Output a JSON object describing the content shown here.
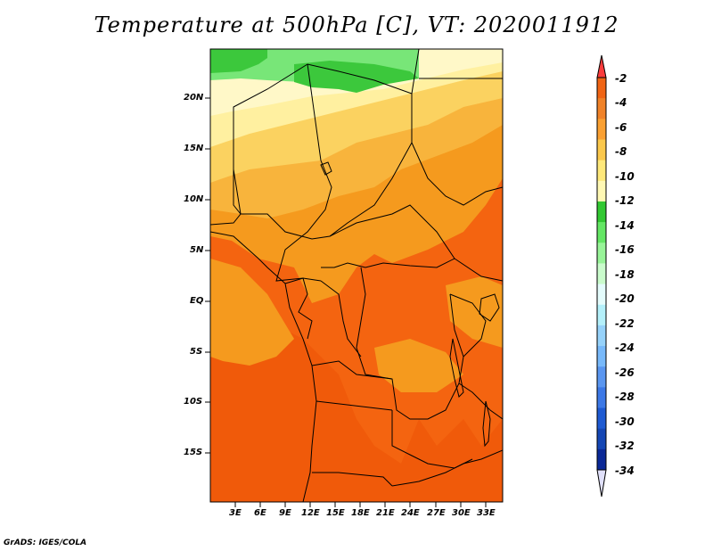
{
  "map": {
    "title": "Temperature at 500hPa [C], VT: 2020011912",
    "variable": "Temperature at 500hPa",
    "units": "C",
    "valid_time": "2020011912",
    "lat_labels": [
      "20N",
      "15N",
      "10N",
      "5N",
      "EQ",
      "5S",
      "10S",
      "15S"
    ],
    "lon_labels": [
      "3E",
      "6E",
      "9E",
      "12E",
      "15E",
      "18E",
      "21E",
      "24E",
      "27E",
      "30E",
      "33E"
    ],
    "credit": "GrADS: IGES/COLA"
  },
  "colorbar": {
    "labels": [
      "-2",
      "-4",
      "-6",
      "-8",
      "-10",
      "-12",
      "-14",
      "-16",
      "-18",
      "-20",
      "-22",
      "-24",
      "-26",
      "-28",
      "-30",
      "-32",
      "-34"
    ],
    "colors": [
      "#fa3c3c",
      "#f06414",
      "#f08228",
      "#faa032",
      "#fbc84c",
      "#fee87a",
      "#fff8b4",
      "#32c832",
      "#64e664",
      "#98f498",
      "#cafccc",
      "#e4fcfc",
      "#b4f0fa",
      "#96d2fa",
      "#78b9fa",
      "#5a96f0",
      "#3c78e6",
      "#1e5ad2",
      "#1446b4",
      "#0a2896",
      "#140a6e"
    ],
    "over_color": "#fa3c3c",
    "under_color": "#e0e0fa"
  },
  "palette": {
    "deep": "#f05a0a",
    "orange_red": "#f46410",
    "orange": "#f59a1e",
    "light_orange": "#f8b43c",
    "yellow_orange": "#fbd260",
    "pale_yellow": "#fff0a0",
    "cream": "#fff8c8",
    "green": "#3cc83c",
    "light_green": "#78e678",
    "border": "#000000"
  }
}
